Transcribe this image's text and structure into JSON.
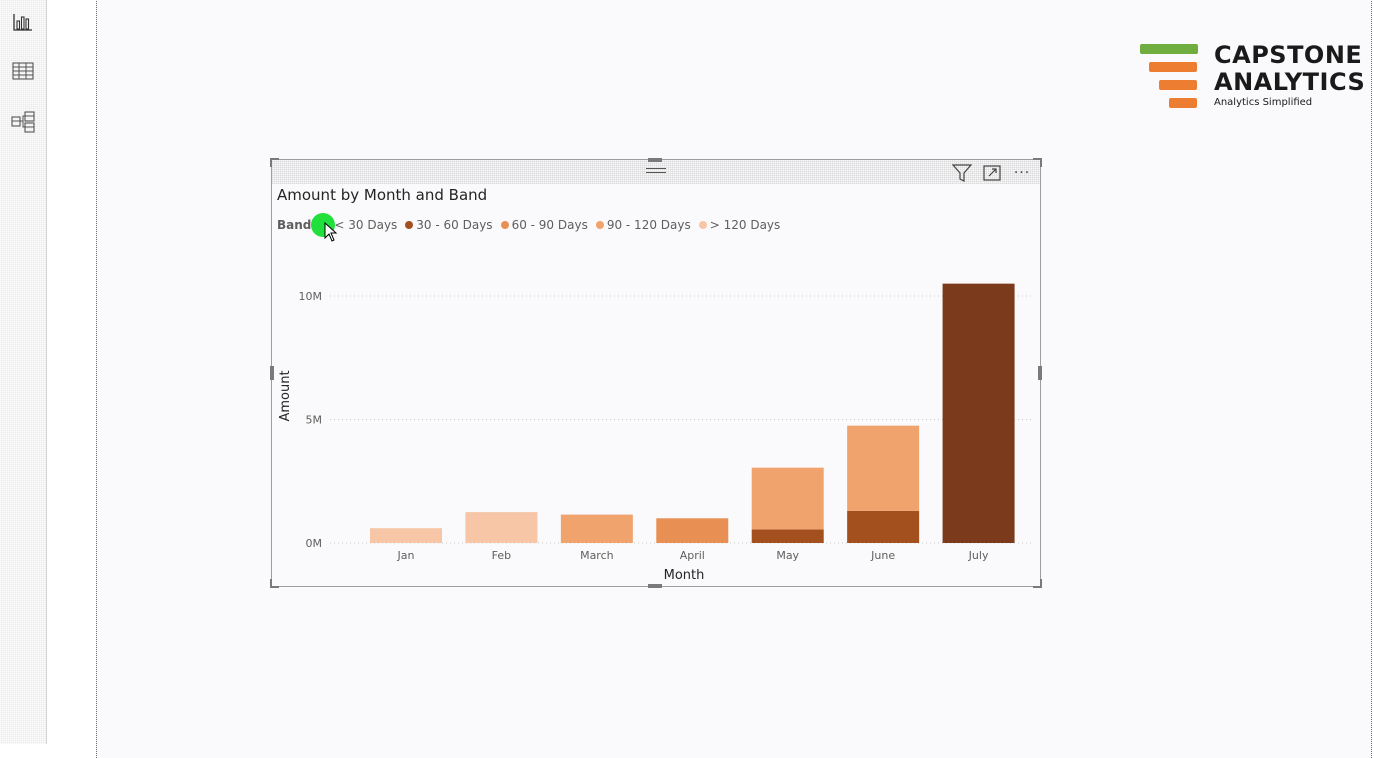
{
  "rail": {
    "items": [
      {
        "name": "report-view-icon"
      },
      {
        "name": "data-view-icon"
      },
      {
        "name": "model-view-icon"
      }
    ]
  },
  "logo": {
    "line1": "CAPSTONE",
    "line2": "ANALYTICS",
    "tagline": "Analytics Simplified",
    "colors": {
      "green": "#6fad3f",
      "orange": "#ed7d31",
      "text": "#1a1a1a"
    }
  },
  "visual": {
    "title": "Amount by Month and Band",
    "header_icons": [
      "filter-icon",
      "focus-mode-icon",
      "more-options-icon"
    ],
    "more_label": "···"
  },
  "legend": {
    "title": "Band",
    "items": [
      {
        "label": "< 30 Days",
        "color": "#7b3a1b"
      },
      {
        "label": "30 - 60 Days",
        "color": "#a44f1e"
      },
      {
        "label": "60 - 90 Days",
        "color": "#e88f54"
      },
      {
        "label": "90 - 120 Days",
        "color": "#f0a36c"
      },
      {
        "label": "> 120 Days",
        "color": "#f6c6a6"
      }
    ]
  },
  "chart_data": {
    "type": "bar",
    "stacked": true,
    "xlabel": "Month",
    "ylabel": "Amount",
    "ylim": [
      0,
      10000000
    ],
    "yticks": [
      {
        "value": 0,
        "label": "0M"
      },
      {
        "value": 5000000,
        "label": "5M"
      },
      {
        "value": 10000000,
        "label": "10M"
      }
    ],
    "gridlines": true,
    "categories": [
      "Jan",
      "Feb",
      "March",
      "April",
      "May",
      "June",
      "July"
    ],
    "series": [
      {
        "name": "< 30 Days",
        "color": "#7b3a1b",
        "values": [
          0,
          0,
          0,
          0,
          0,
          0,
          10500000
        ]
      },
      {
        "name": "30 - 60 Days",
        "color": "#a44f1e",
        "values": [
          0,
          0,
          0,
          0,
          550000,
          1300000,
          0
        ]
      },
      {
        "name": "60 - 90 Days",
        "color": "#e88f54",
        "values": [
          0,
          0,
          0,
          1000000,
          0,
          0,
          0
        ]
      },
      {
        "name": "90 - 120 Days",
        "color": "#f0a36c",
        "values": [
          0,
          0,
          1150000,
          0,
          2500000,
          3450000,
          0
        ]
      },
      {
        "name": "> 120 Days",
        "color": "#f6c6a6",
        "values": [
          600000,
          1250000,
          0,
          0,
          0,
          0,
          0
        ]
      }
    ],
    "stack_overrides_note_colors": {
      "June_top": "#a44f1e",
      "Feb_base": "#f0a36c",
      "May_top": "#f0a36c"
    }
  }
}
